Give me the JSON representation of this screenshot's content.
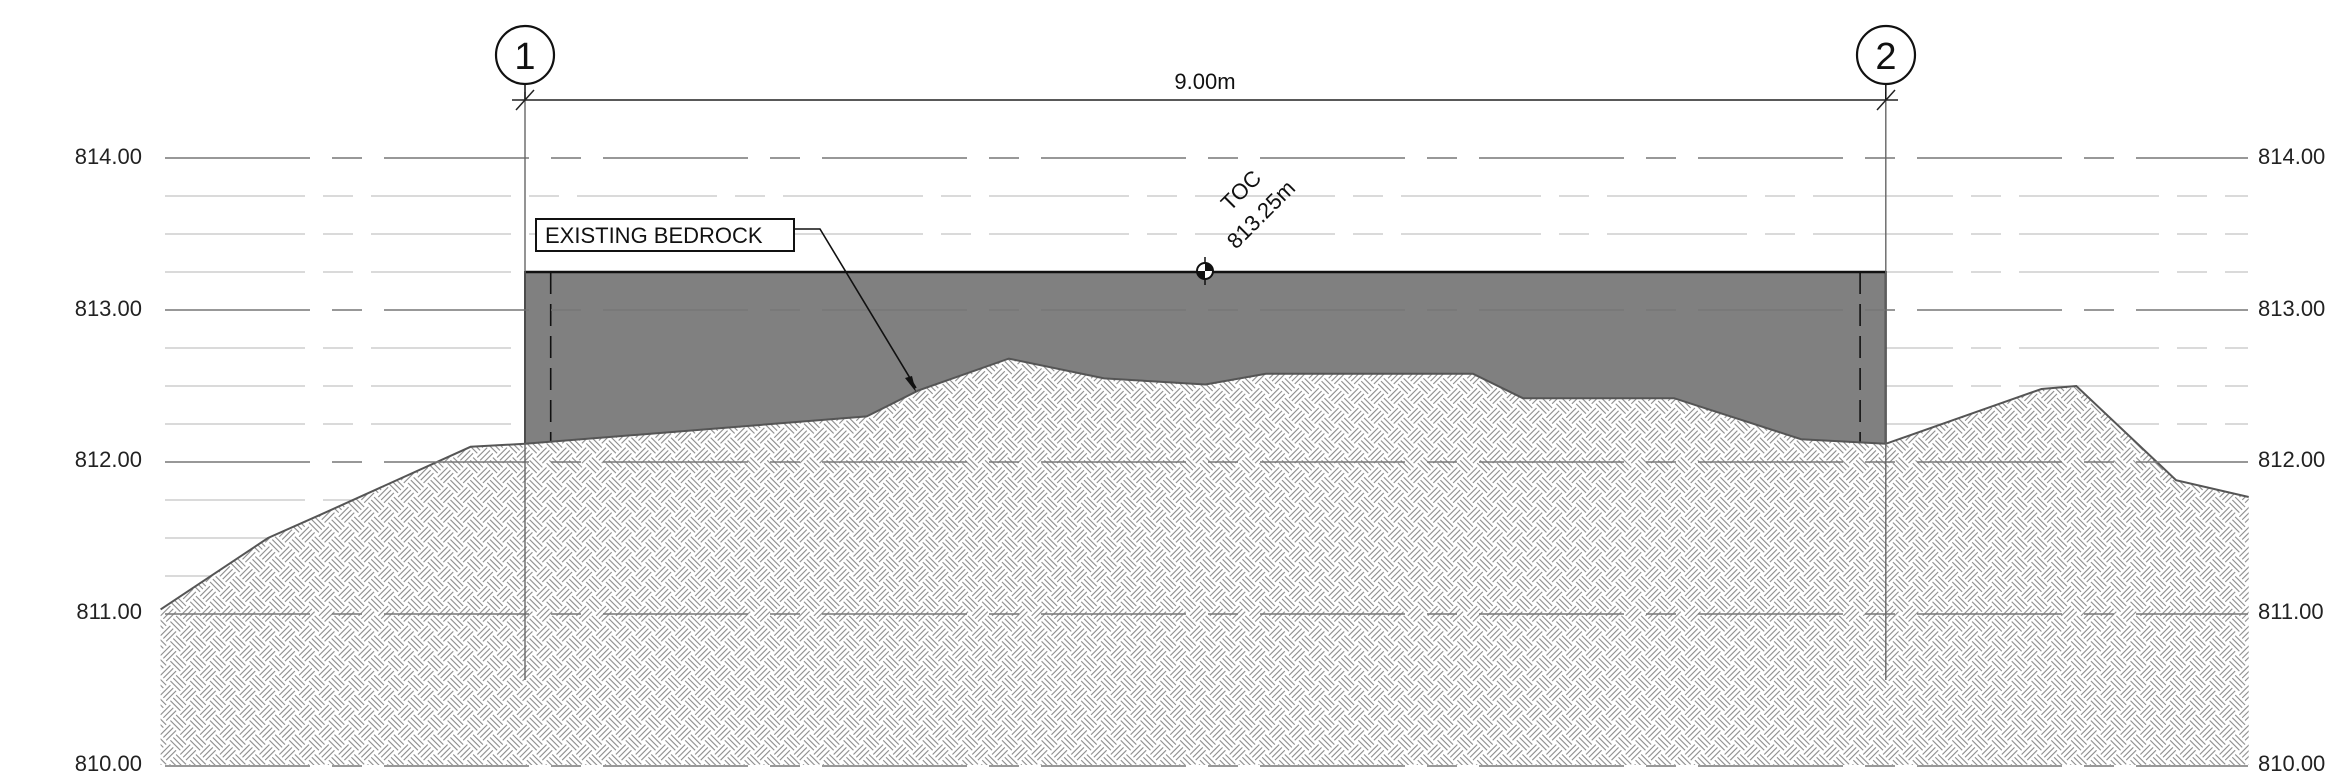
{
  "levels": [
    {
      "value": 814.0,
      "text": "814.00"
    },
    {
      "value": 813.0,
      "text": "813.00"
    },
    {
      "value": 812.0,
      "text": "812.00"
    },
    {
      "value": 811.0,
      "text": "811.00"
    },
    {
      "value": 810.0,
      "text": "810.00"
    }
  ],
  "grid_lines": {
    "left": "1",
    "right": "2"
  },
  "dimension": {
    "text": "9.00m"
  },
  "label": {
    "text": "EXISTING BEDROCK"
  },
  "toc": {
    "title": "TOC",
    "elevation": "813.25m",
    "value": 813.25
  },
  "colors": {
    "fill": "#808080",
    "line": "#333333",
    "hatch": "#8a8a8a",
    "dash": "#999999"
  },
  "profile": [
    {
      "x": -2.41,
      "elev": 811.03
    },
    {
      "x": -1.7,
      "elev": 811.5
    },
    {
      "x": -1.36,
      "elev": 811.65
    },
    {
      "x": -0.36,
      "elev": 812.1
    },
    {
      "x": 0.0,
      "elev": 812.12
    },
    {
      "x": 2.26,
      "elev": 812.3
    },
    {
      "x": 2.6,
      "elev": 812.47
    },
    {
      "x": 3.2,
      "elev": 812.68
    },
    {
      "x": 3.83,
      "elev": 812.55
    },
    {
      "x": 4.5,
      "elev": 812.51
    },
    {
      "x": 4.9,
      "elev": 812.58
    },
    {
      "x": 6.27,
      "elev": 812.58
    },
    {
      "x": 6.6,
      "elev": 812.42
    },
    {
      "x": 7.6,
      "elev": 812.42
    },
    {
      "x": 8.44,
      "elev": 812.15
    },
    {
      "x": 9.0,
      "elev": 812.12
    },
    {
      "x": 10.03,
      "elev": 812.48
    },
    {
      "x": 10.26,
      "elev": 812.5
    },
    {
      "x": 10.92,
      "elev": 811.88
    },
    {
      "x": 11.4,
      "elev": 811.77
    }
  ]
}
